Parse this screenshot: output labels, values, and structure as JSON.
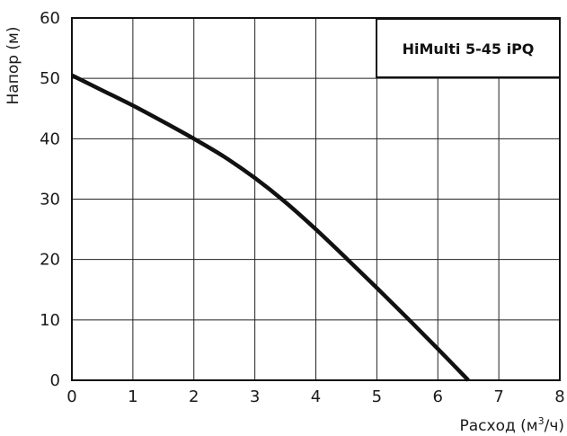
{
  "chart_data": {
    "type": "line",
    "title": "",
    "xlabel_text": "Расход (м",
    "xlabel_sup": "3",
    "xlabel_suffix": "/ч)",
    "ylabel": "Напор (м)",
    "xlim": [
      0,
      8
    ],
    "ylim": [
      0,
      60
    ],
    "x_ticks": [
      "0",
      "1",
      "2",
      "3",
      "4",
      "5",
      "6",
      "7",
      "8"
    ],
    "y_ticks": [
      "0",
      "10",
      "20",
      "30",
      "40",
      "50",
      "60"
    ],
    "grid": true,
    "legend": {
      "label": "HiMulti 5-45 iPQ",
      "placement": "top-right"
    },
    "series": [
      {
        "name": "HiMulti 5-45 iPQ",
        "color": "#111111",
        "x": [
          0,
          0.5,
          1,
          1.5,
          2,
          2.5,
          3,
          3.5,
          4,
          4.5,
          5,
          5.5,
          6,
          6.5
        ],
        "y": [
          50.5,
          48,
          45.5,
          42.8,
          40,
          37,
          33.5,
          29.5,
          25,
          20.2,
          15.3,
          10.3,
          5.2,
          0
        ]
      }
    ]
  }
}
